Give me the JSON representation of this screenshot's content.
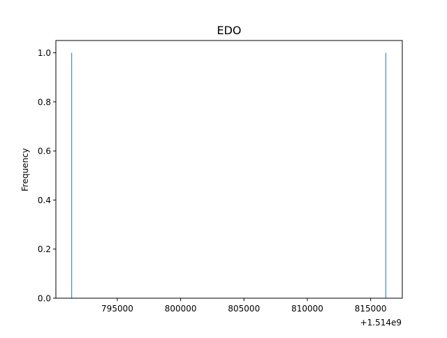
{
  "chart_data": {
    "type": "bar",
    "title": "EDO",
    "xlabel": "",
    "ylabel": "Frequency",
    "x_offset_text": "+1.514e9",
    "xlim": [
      1514790150,
      1514817500
    ],
    "ylim": [
      0,
      1.05
    ],
    "x_ticks": [
      795000,
      800000,
      805000,
      810000,
      815000
    ],
    "x_tick_labels": [
      "795000",
      "800000",
      "805000",
      "810000",
      "815000"
    ],
    "y_ticks": [
      0.0,
      0.2,
      0.4,
      0.6,
      0.8,
      1.0
    ],
    "y_tick_labels": [
      "0.0",
      "0.2",
      "0.4",
      "0.6",
      "0.8",
      "1.0"
    ],
    "grid": false,
    "bars": [
      {
        "x": 1514791400,
        "value": 1
      },
      {
        "x": 1514816200,
        "value": 1
      }
    ],
    "bar_color": "#1f77b4"
  }
}
